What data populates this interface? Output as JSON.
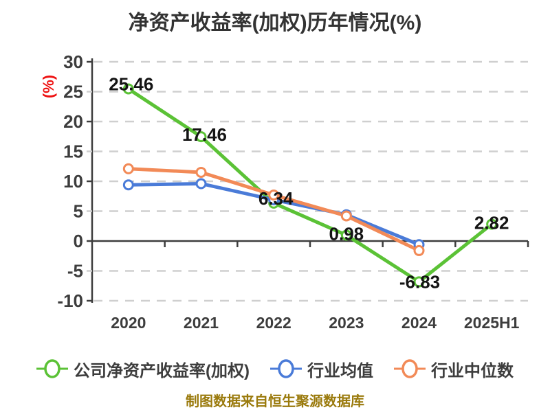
{
  "title": "净资产收益率(加权)历年情况(%)",
  "y_axis_unit": "(%)",
  "footer": "制图数据来自恒生聚源数据库",
  "colors": {
    "company_line": "#5bc236",
    "industry_avg_line": "#4a7bd8",
    "industry_median_line": "#f28a57",
    "grid": "#cfcfcf",
    "axis": "#3d3d3d",
    "title_text": "#333333",
    "tick_text": "#3d3d3d",
    "value_label_text": "#141414",
    "y_unit_text": "#ee1111",
    "footer_text": "#9a7a0c",
    "point_fill": "#ffffff"
  },
  "chart_data": {
    "type": "line",
    "title": "净资产收益率(加权)历年情况(%)",
    "ylabel": "(%)",
    "xlabel": "",
    "categories": [
      "2020",
      "2021",
      "2022",
      "2023",
      "2024",
      "2025H1"
    ],
    "series": [
      {
        "name": "公司净资产收益率(加权)",
        "color": "#5bc236",
        "values": [
          25.46,
          17.46,
          6.34,
          0.98,
          -6.83,
          2.82
        ],
        "point_labels": [
          "25.46",
          "17.46",
          "6.34",
          "0.98",
          "-6.83",
          "2.82"
        ]
      },
      {
        "name": "行业均值",
        "color": "#4a7bd8",
        "values": [
          9.4,
          9.6,
          6.9,
          4.4,
          -0.6,
          null
        ],
        "point_labels": null
      },
      {
        "name": "行业中位数",
        "color": "#f28a57",
        "values": [
          12.1,
          11.5,
          7.7,
          4.2,
          -1.6,
          null
        ],
        "point_labels": null
      }
    ],
    "ylim": [
      -10,
      30
    ],
    "yticks": [
      30,
      25,
      20,
      15,
      10,
      5,
      0,
      -5,
      -10
    ],
    "grid": "horizontal-dashed, solid dark line at 0 (x-axis)",
    "legend_position": "bottom"
  }
}
